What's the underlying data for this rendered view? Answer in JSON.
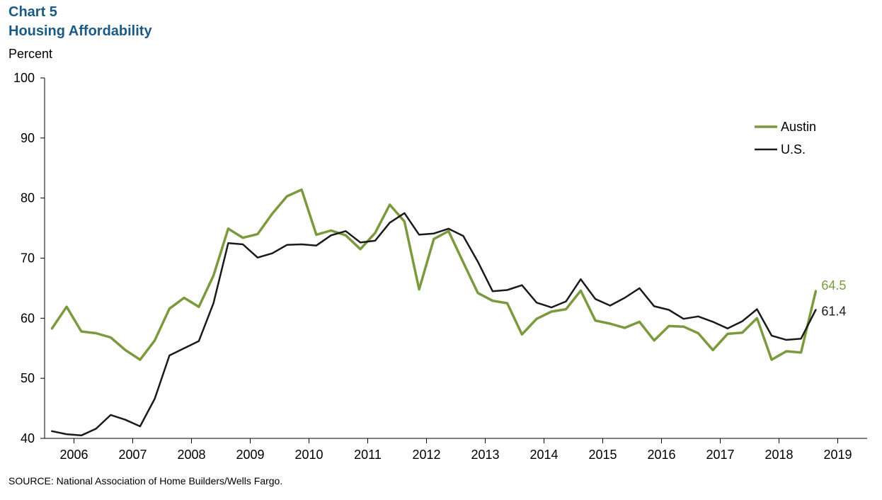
{
  "header": {
    "chart_number": "Chart 5",
    "title": "Housing Affordability",
    "y_unit": "Percent"
  },
  "footer": {
    "source": "SOURCE:  National Association of Home Builders/Wells Fargo."
  },
  "colors": {
    "austin": "#7a9a3d",
    "us": "#1a1a1a",
    "title": "#1c5a86"
  },
  "chart_data": {
    "type": "line",
    "title": "Housing Affordability",
    "ylabel": "Percent",
    "xlabel": "",
    "ylim": [
      40,
      100
    ],
    "yticks": [
      40,
      50,
      60,
      70,
      80,
      90,
      100
    ],
    "xlim": [
      2005.5,
      2019.5
    ],
    "year_labels": [
      "2006",
      "2007",
      "2008",
      "2009",
      "2010",
      "2011",
      "2012",
      "2013",
      "2014",
      "2015",
      "2016",
      "2017",
      "2018",
      "2019"
    ],
    "legend": {
      "position": "top-right",
      "entries": [
        "Austin",
        "U.S."
      ]
    },
    "start": 2005.625,
    "step": 0.25,
    "series": [
      {
        "name": "Austin",
        "color": "#7a9a3d",
        "values": [
          58.3,
          61.9,
          57.8,
          57.5,
          56.8,
          54.7,
          53.1,
          56.3,
          61.6,
          63.4,
          61.9,
          67.1,
          74.9,
          73.4,
          74.0,
          77.4,
          80.3,
          81.4,
          73.9,
          74.6,
          73.8,
          71.5,
          74.2,
          78.9,
          76.1,
          64.8,
          73.2,
          74.5,
          69.3,
          64.2,
          62.9,
          62.5,
          57.3,
          59.9,
          61.1,
          61.5,
          64.6,
          59.6,
          59.1,
          58.4,
          59.4,
          56.3,
          58.7,
          58.6,
          57.5,
          54.7,
          57.4,
          57.6,
          60.0,
          53.1,
          54.5,
          54.3,
          64.5
        ],
        "end_label": "64.5"
      },
      {
        "name": "U.S.",
        "color": "#1a1a1a",
        "values": [
          41.2,
          40.7,
          40.5,
          41.6,
          43.9,
          43.1,
          42.0,
          46.6,
          53.8,
          55.0,
          56.2,
          62.5,
          72.5,
          72.3,
          70.1,
          70.8,
          72.2,
          72.3,
          72.1,
          73.8,
          74.5,
          72.6,
          72.9,
          75.9,
          77.5,
          73.9,
          74.1,
          74.9,
          73.7,
          69.4,
          64.5,
          64.7,
          65.5,
          62.6,
          61.8,
          62.8,
          66.5,
          63.2,
          62.1,
          63.4,
          65.0,
          62.0,
          61.4,
          59.9,
          60.3,
          59.4,
          58.3,
          59.5,
          61.5,
          57.1,
          56.4,
          56.6,
          61.4
        ],
        "end_label": "61.4"
      }
    ]
  }
}
